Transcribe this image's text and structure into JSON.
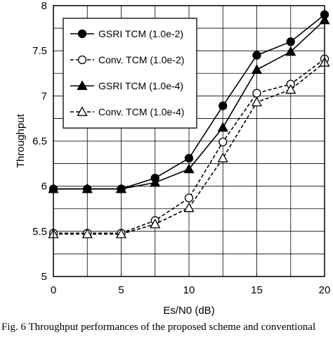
{
  "chart_data": {
    "type": "line",
    "title": "",
    "xlabel": "Es/N0 (dB)",
    "ylabel": "Throughput",
    "xlim": [
      0,
      20
    ],
    "ylim": [
      5,
      8
    ],
    "xticks": [
      "0",
      "5",
      "10",
      "15",
      "20"
    ],
    "yticks": [
      "5",
      "5.5",
      "6",
      "6.5",
      "7",
      "7.5",
      "8"
    ],
    "grid": true,
    "legend_position": "top-left",
    "x": [
      0,
      2.5,
      5,
      7.5,
      10,
      12.5,
      15,
      17.5,
      20
    ],
    "series": [
      {
        "name": "GSRI TCM (1.0e-2)",
        "marker": "filled-circle",
        "line": "solid",
        "color": "#000000",
        "values": [
          5.97,
          5.97,
          5.97,
          6.09,
          6.31,
          6.89,
          7.45,
          7.6,
          7.9
        ]
      },
      {
        "name": "Conv.  TCM (1.0e-2)",
        "marker": "open-circle",
        "line": "dashed",
        "color": "#000000",
        "values": [
          5.48,
          5.48,
          5.48,
          5.62,
          5.87,
          6.49,
          7.03,
          7.13,
          7.41
        ]
      },
      {
        "name": "GSRI TCM (1.0e-4)",
        "marker": "filled-triangle",
        "line": "solid",
        "color": "#000000",
        "values": [
          5.97,
          5.97,
          5.97,
          6.04,
          6.19,
          6.65,
          7.29,
          7.49,
          7.84
        ]
      },
      {
        "name": "Conv.  TCM (1.0e-4)",
        "marker": "open-triangle",
        "line": "dashed",
        "color": "#000000",
        "values": [
          5.47,
          5.47,
          5.47,
          5.58,
          5.76,
          6.31,
          6.93,
          7.07,
          7.37
        ]
      }
    ]
  },
  "caption": "Fig. 6 Throughput performances of the proposed scheme and conventional"
}
